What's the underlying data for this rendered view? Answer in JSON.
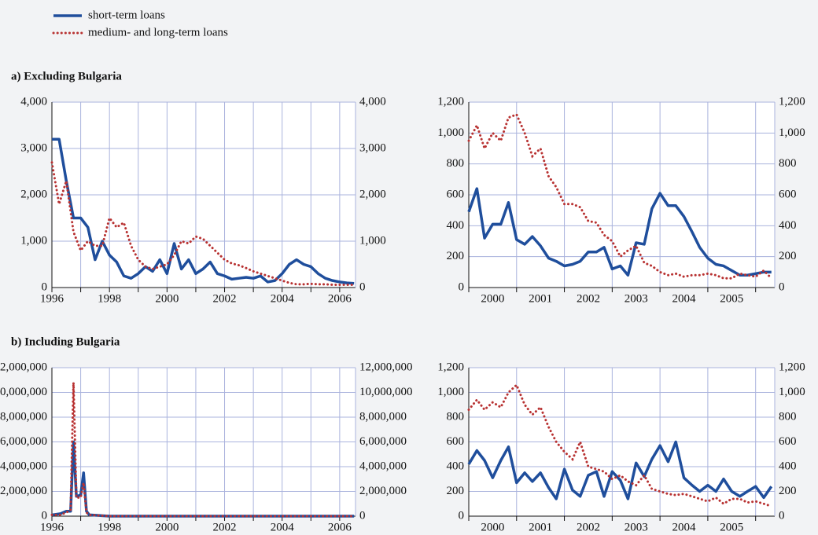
{
  "chart_data": [
    {
      "type": "line",
      "title": "a) Excluding Bulgaria",
      "legend": "top-left",
      "grid": true,
      "mirror_y_axis": true,
      "x": [
        1996,
        1996.25,
        1996.5,
        1996.75,
        1997,
        1997.25,
        1997.5,
        1997.75,
        1998,
        1998.25,
        1998.5,
        1998.75,
        1999,
        1999.25,
        1999.5,
        1999.75,
        2000,
        2000.25,
        2000.5,
        2000.75,
        2001,
        2001.25,
        2001.5,
        2001.75,
        2002,
        2002.25,
        2002.5,
        2002.75,
        2003,
        2003.25,
        2003.5,
        2003.75,
        2004,
        2004.25,
        2004.5,
        2004.75,
        2005,
        2005.25,
        2005.5,
        2005.75,
        2006,
        2006.25,
        2006.5
      ],
      "series": [
        {
          "name": "short-term loans",
          "color": "#1f4e9c",
          "style": "solid",
          "values": [
            3200,
            3200,
            2300,
            1500,
            1500,
            1300,
            600,
            1000,
            700,
            550,
            250,
            200,
            300,
            450,
            350,
            600,
            300,
            950,
            400,
            600,
            300,
            400,
            550,
            300,
            250,
            180,
            200,
            220,
            200,
            250,
            120,
            150,
            300,
            500,
            600,
            500,
            450,
            300,
            200,
            150,
            120,
            100,
            90
          ]
        },
        {
          "name": "medium- and long-term loans",
          "color": "#b83232",
          "style": "dotted",
          "values": [
            2700,
            1800,
            2300,
            1200,
            800,
            1000,
            900,
            900,
            1500,
            1300,
            1400,
            900,
            600,
            450,
            400,
            450,
            500,
            700,
            1000,
            950,
            1100,
            1050,
            900,
            750,
            600,
            520,
            480,
            420,
            350,
            300,
            250,
            200,
            150,
            100,
            70,
            70,
            80,
            70,
            70,
            60,
            60,
            60,
            60
          ]
        }
      ],
      "xlim": [
        1996,
        2006.55
      ],
      "xticks": [
        1996,
        1998,
        2000,
        2002,
        2004,
        2006
      ],
      "ylim": [
        0,
        4000
      ],
      "yticks": [
        0,
        {
          "value": 1000,
          "label": "1,000"
        },
        {
          "value": 2000,
          "label": "2,000"
        },
        {
          "value": 3000,
          "label": "3,000"
        },
        {
          "value": 4000,
          "label": "4,000"
        }
      ]
    },
    {
      "type": "line",
      "grid": true,
      "mirror_y_axis": true,
      "xtick_labels": "between",
      "x": [
        2000,
        2000.17,
        2000.33,
        2000.5,
        2000.67,
        2000.83,
        2001,
        2001.17,
        2001.33,
        2001.5,
        2001.67,
        2001.83,
        2002,
        2002.17,
        2002.33,
        2002.5,
        2002.67,
        2002.83,
        2003,
        2003.17,
        2003.33,
        2003.5,
        2003.67,
        2003.83,
        2004,
        2004.17,
        2004.33,
        2004.5,
        2004.67,
        2004.83,
        2005,
        2005.17,
        2005.33,
        2005.5,
        2005.67,
        2005.83,
        2006,
        2006.17,
        2006.33
      ],
      "series": [
        {
          "color": "#1f4e9c",
          "style": "solid",
          "values": [
            490,
            640,
            320,
            410,
            410,
            550,
            310,
            280,
            330,
            270,
            190,
            170,
            140,
            150,
            170,
            230,
            230,
            260,
            120,
            140,
            80,
            290,
            280,
            510,
            610,
            530,
            530,
            460,
            360,
            260,
            190,
            150,
            140,
            110,
            80,
            80,
            90,
            100,
            100
          ]
        },
        {
          "color": "#b83232",
          "style": "dotted",
          "values": [
            950,
            1050,
            900,
            1000,
            950,
            1100,
            1120,
            1000,
            850,
            900,
            720,
            650,
            540,
            540,
            520,
            430,
            420,
            340,
            300,
            200,
            240,
            270,
            160,
            140,
            100,
            80,
            90,
            70,
            80,
            80,
            90,
            80,
            60,
            60,
            90,
            80,
            70,
            110,
            60
          ]
        }
      ],
      "xlim": [
        2000,
        2006.4
      ],
      "xticks": [
        2000,
        2001,
        2002,
        2003,
        2004,
        2005
      ],
      "ylim": [
        0,
        1200
      ],
      "yticks": [
        0,
        200,
        400,
        600,
        800,
        {
          "value": 1000,
          "label": "1,000"
        },
        {
          "value": 1200,
          "label": "1,200"
        }
      ]
    },
    {
      "type": "line",
      "title": "b) Including Bulgaria",
      "grid": true,
      "mirror_y_axis": true,
      "x": [
        1996,
        1996.3,
        1996.5,
        1996.65,
        1996.75,
        1996.85,
        1997,
        1997.1,
        1997.2,
        1997.3,
        1998,
        1999,
        2000,
        2001,
        2002,
        2003,
        2004,
        2005,
        2006,
        2006.5
      ],
      "series": [
        {
          "color": "#1f4e9c",
          "style": "solid",
          "values": [
            100000,
            200000,
            400000,
            400000,
            6000000,
            1600000,
            1700000,
            3500000,
            400000,
            100000,
            700,
            300,
            300,
            300,
            250,
            200,
            300,
            450,
            120,
            90
          ]
        },
        {
          "color": "#b83232",
          "style": "dotted",
          "values": [
            100000,
            100000,
            300000,
            500000,
            10800000,
            1500000,
            1500000,
            2700000,
            300000,
            100000,
            1500,
            600,
            500,
            1100,
            600,
            350,
            150,
            80,
            60,
            60
          ]
        }
      ],
      "xlim": [
        1996,
        2006.55
      ],
      "xticks": [
        1996,
        1998,
        2000,
        2002,
        2004,
        2006
      ],
      "ylim": [
        0,
        12000000
      ],
      "yticks": [
        0,
        {
          "value": 2000000,
          "label": "2,000,000"
        },
        {
          "value": 4000000,
          "label": "4,000,000"
        },
        {
          "value": 6000000,
          "label": "6,000,000"
        },
        {
          "value": 8000000,
          "label": "8,000,000"
        },
        {
          "value": 10000000,
          "label": "10,000,000"
        },
        {
          "value": 12000000,
          "label": "12,000,000"
        }
      ]
    },
    {
      "type": "line",
      "grid": true,
      "mirror_y_axis": true,
      "xtick_labels": "between",
      "x": [
        2000,
        2000.17,
        2000.33,
        2000.5,
        2000.67,
        2000.83,
        2001,
        2001.17,
        2001.33,
        2001.5,
        2001.67,
        2001.83,
        2002,
        2002.17,
        2002.33,
        2002.5,
        2002.67,
        2002.83,
        2003,
        2003.17,
        2003.33,
        2003.5,
        2003.67,
        2003.83,
        2004,
        2004.17,
        2004.33,
        2004.5,
        2004.67,
        2004.83,
        2005,
        2005.17,
        2005.33,
        2005.5,
        2005.67,
        2005.83,
        2006,
        2006.17,
        2006.33
      ],
      "series": [
        {
          "color": "#1f4e9c",
          "style": "solid",
          "values": [
            420,
            530,
            450,
            310,
            450,
            560,
            270,
            350,
            280,
            350,
            230,
            140,
            380,
            210,
            160,
            330,
            360,
            160,
            360,
            290,
            140,
            430,
            320,
            460,
            570,
            440,
            600,
            310,
            250,
            200,
            250,
            200,
            300,
            200,
            160,
            200,
            240,
            150,
            240
          ]
        },
        {
          "color": "#b83232",
          "style": "dotted",
          "values": [
            860,
            940,
            860,
            920,
            880,
            1000,
            1060,
            900,
            820,
            880,
            720,
            600,
            520,
            460,
            600,
            400,
            380,
            360,
            300,
            330,
            280,
            250,
            330,
            220,
            200,
            180,
            170,
            180,
            160,
            140,
            120,
            150,
            100,
            140,
            140,
            110,
            120,
            100,
            80
          ]
        }
      ],
      "xlim": [
        2000,
        2006.4
      ],
      "xticks": [
        2000,
        2001,
        2002,
        2003,
        2004,
        2005
      ],
      "ylim": [
        0,
        1200
      ],
      "yticks": [
        0,
        200,
        400,
        600,
        800,
        {
          "value": 1000,
          "label": "1,000"
        },
        {
          "value": 1200,
          "label": "1,200"
        }
      ]
    }
  ]
}
